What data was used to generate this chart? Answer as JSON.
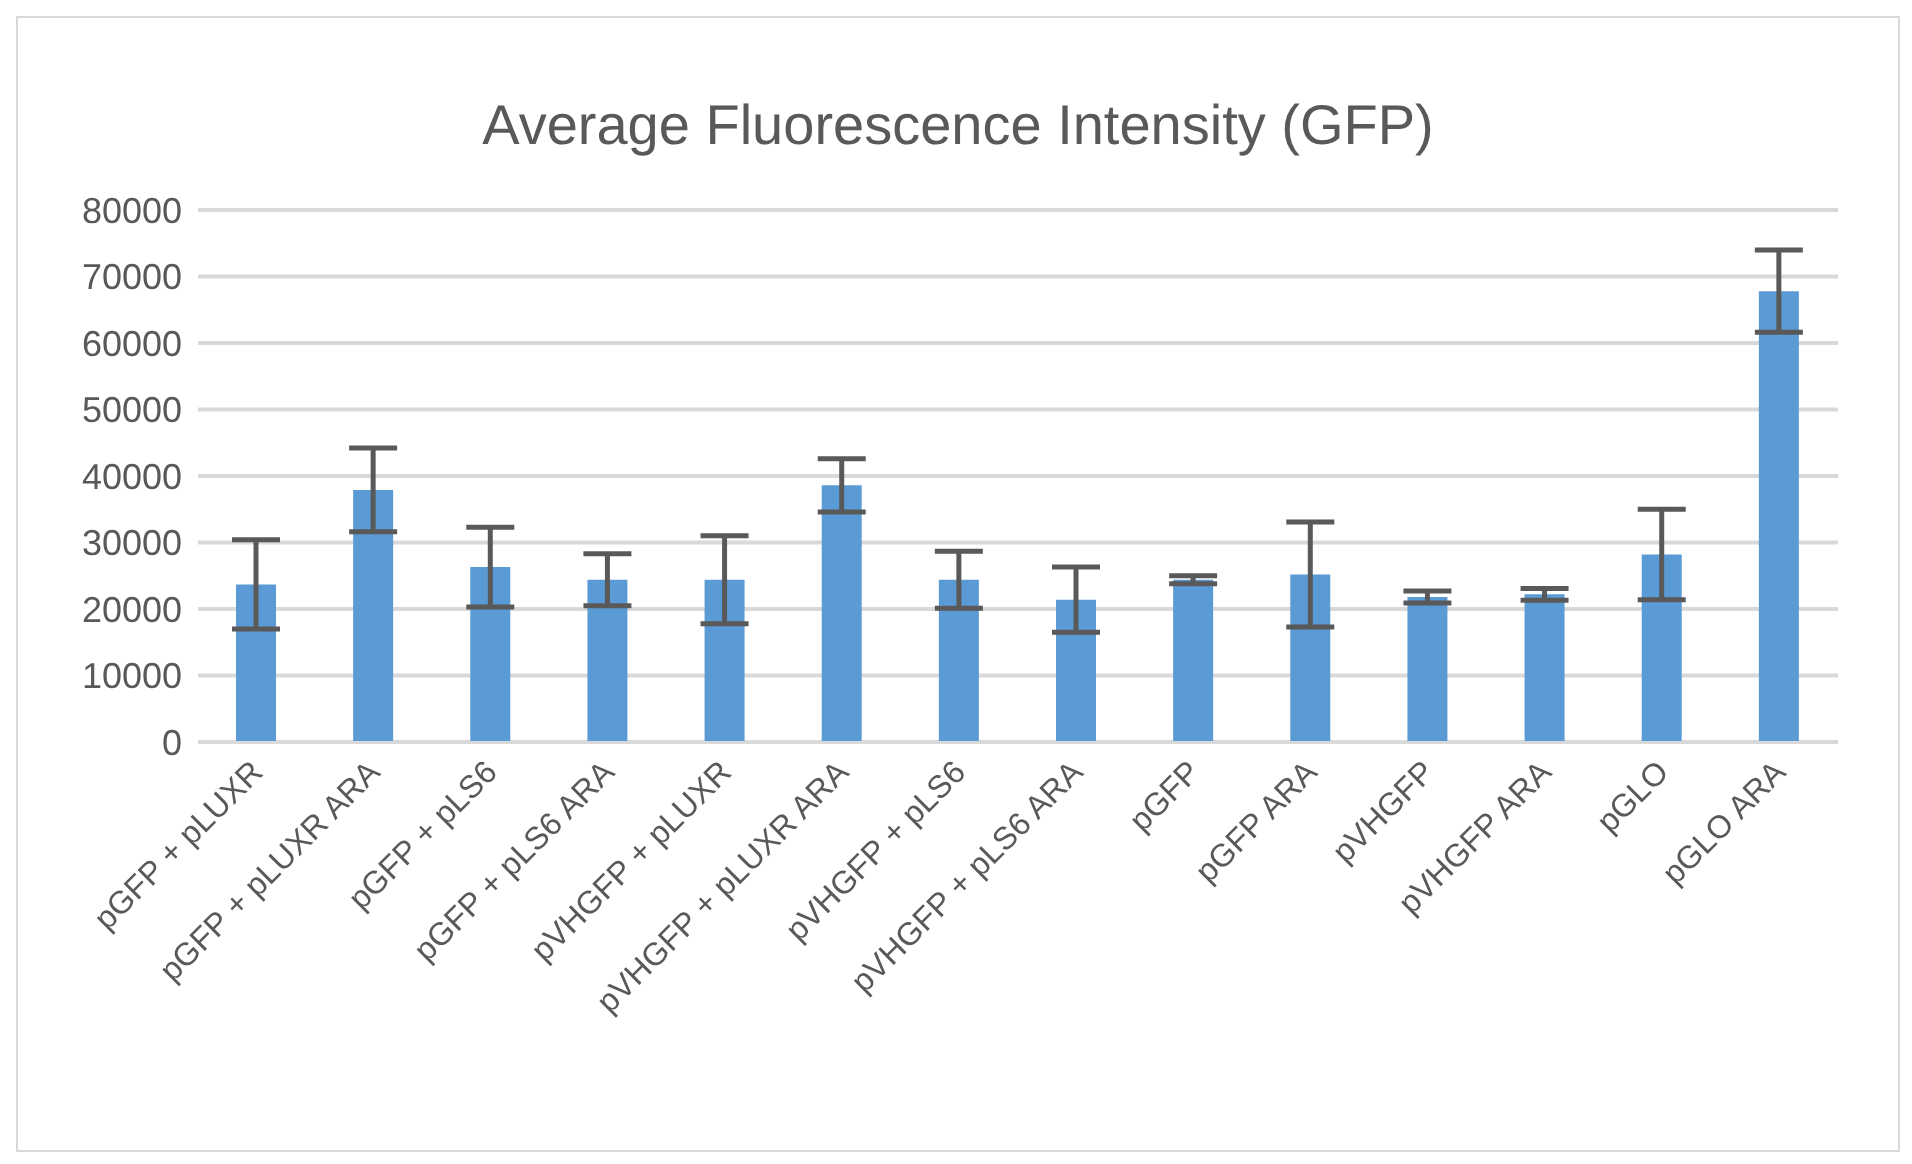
{
  "chart_data": {
    "type": "bar",
    "title": "Average Fluorescence Intensity (GFP)",
    "categories": [
      "pGFP + pLUXR",
      "pGFP + pLUXR ARA",
      "pGFP + pLS6",
      "pGFP + pLS6 ARA",
      "pVHGFP + pLUXR",
      "pVHGFP + pLUXR ARA",
      "pVHGFP + pLS6",
      "pVHGFP + pLS6 ARA",
      "pGFP",
      "pGFP ARA",
      "pVHGFP",
      "pVHGFP ARA",
      "pGLO",
      "pGLO ARA"
    ],
    "values": [
      23700,
      37900,
      26300,
      24400,
      24400,
      38600,
      24400,
      21400,
      24400,
      25200,
      21800,
      22200,
      28200,
      67800
    ],
    "errors": [
      6700,
      6300,
      6000,
      3900,
      6600,
      4000,
      4300,
      4900,
      600,
      7900,
      900,
      900,
      6800,
      6200
    ],
    "color": "#5b9bd5",
    "ylim": [
      0,
      80000
    ],
    "yticks": [
      0,
      10000,
      20000,
      30000,
      40000,
      50000,
      60000,
      70000,
      80000
    ],
    "grid": "y",
    "legend": false
  }
}
